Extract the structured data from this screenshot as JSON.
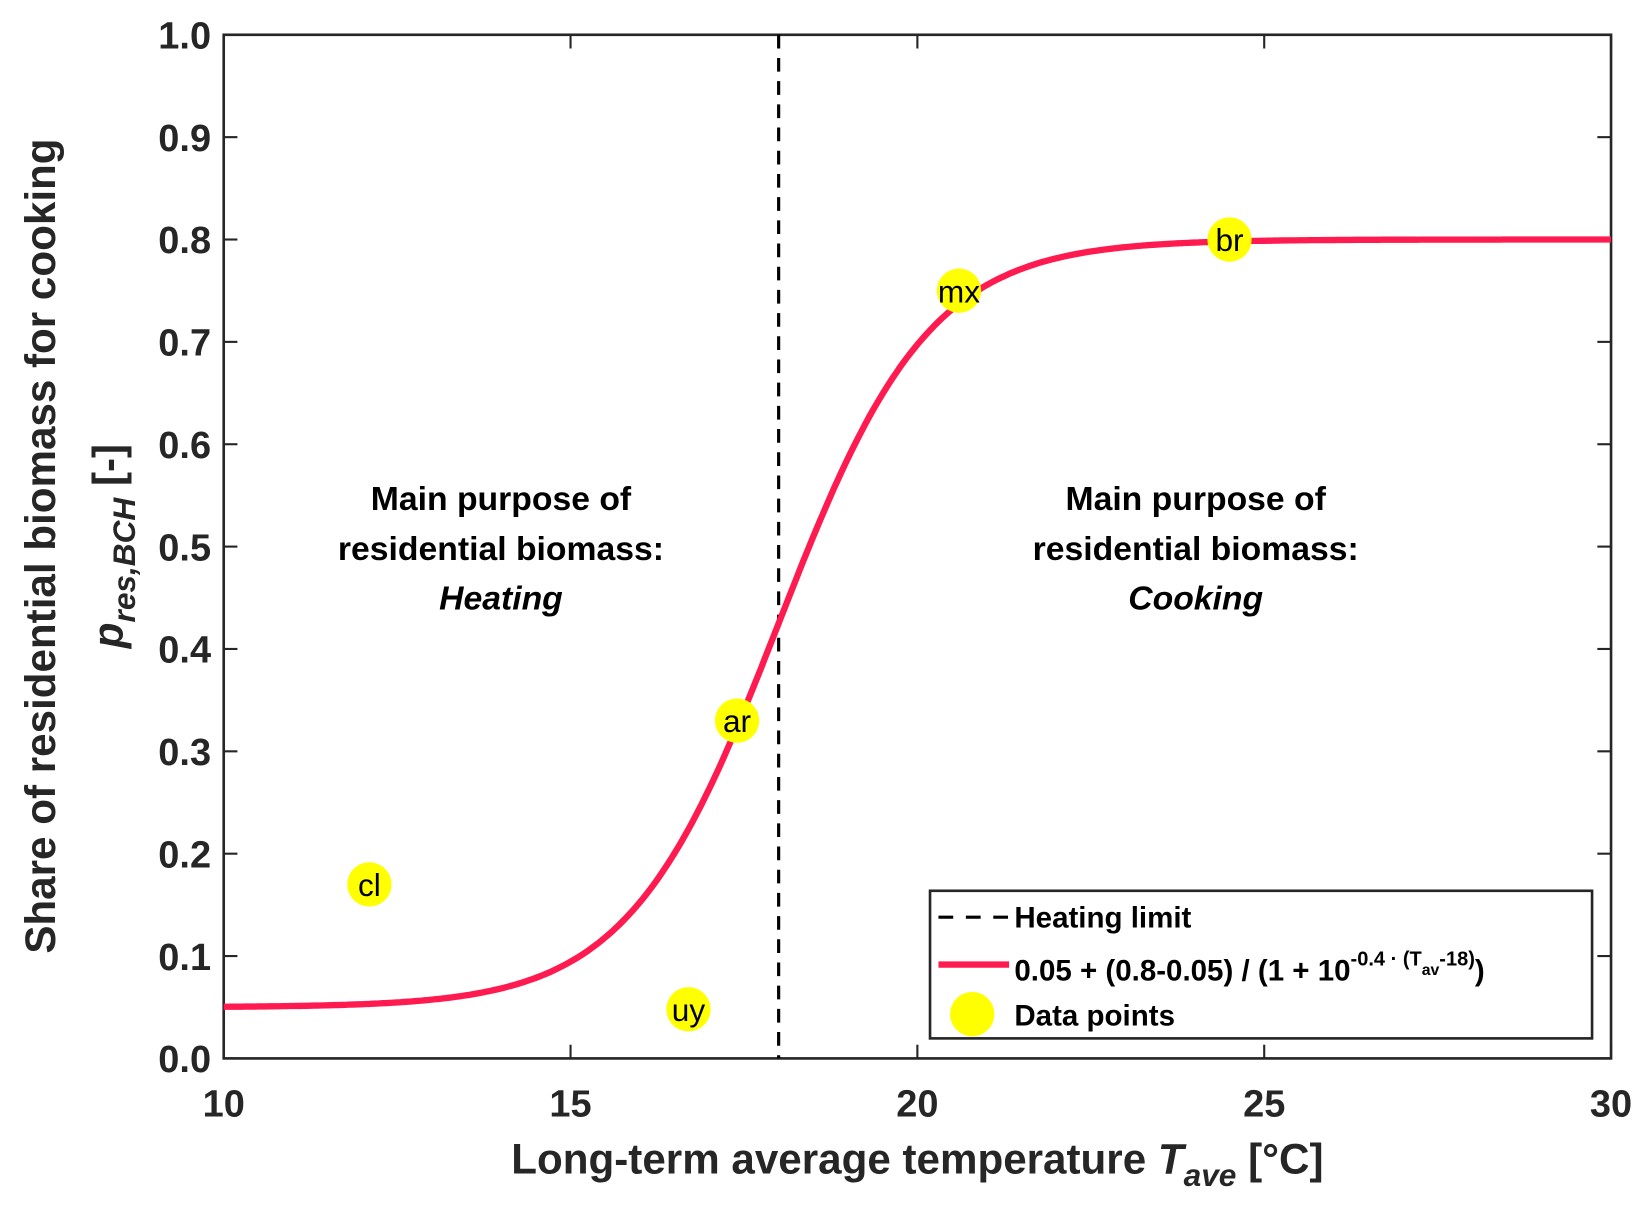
{
  "chart_data": {
    "type": "line",
    "title": "",
    "xlabel": "Long-term average temperature",
    "xlabel_symbol": "T",
    "xlabel_subscript": "ave",
    "xlabel_unit": "[°C]",
    "ylabel": "Share of residential biomass for cooking",
    "ylabel_symbol": "p",
    "ylabel_subscript": "res,BCH",
    "ylabel_unit": "[-]",
    "xlim": [
      10,
      30
    ],
    "ylim": [
      0,
      1
    ],
    "xticks": [
      "10",
      "15",
      "20",
      "25",
      "30"
    ],
    "yticks": [
      "0.0",
      "0.1",
      "0.2",
      "0.3",
      "0.4",
      "0.5",
      "0.6",
      "0.7",
      "0.8",
      "0.9",
      "1.0"
    ],
    "grid": false,
    "legend_position": "bottom-right",
    "heating_limit": {
      "x": 18,
      "label": "Heating limit",
      "color": "#000000"
    },
    "curve": {
      "label_main": "0.05 + (0.8-0.05) / (1 + 10",
      "label_sup": "-0.4 · (T",
      "label_sub": "av",
      "label_sup2": "-18)",
      "label_end": ")",
      "ymin": 0.05,
      "ymax": 0.8,
      "k": 0.4,
      "x0": 18,
      "color": "#ff1a4f"
    },
    "points": {
      "label": "Data points",
      "color": "#ffff00",
      "items": [
        {
          "name": "cl",
          "x": 12.1,
          "y": 0.17
        },
        {
          "name": "uy",
          "x": 16.7,
          "y": 0.048
        },
        {
          "name": "ar",
          "x": 17.4,
          "y": 0.33
        },
        {
          "name": "mx",
          "x": 20.6,
          "y": 0.75
        },
        {
          "name": "br",
          "x": 24.5,
          "y": 0.8
        }
      ]
    },
    "annotations": {
      "heating": {
        "line1": "Main purpose of",
        "line2": "residential biomass:",
        "line3": "Heating"
      },
      "cooking": {
        "line1": "Main purpose of",
        "line2": "residential biomass:",
        "line3": "Cooking"
      }
    }
  }
}
